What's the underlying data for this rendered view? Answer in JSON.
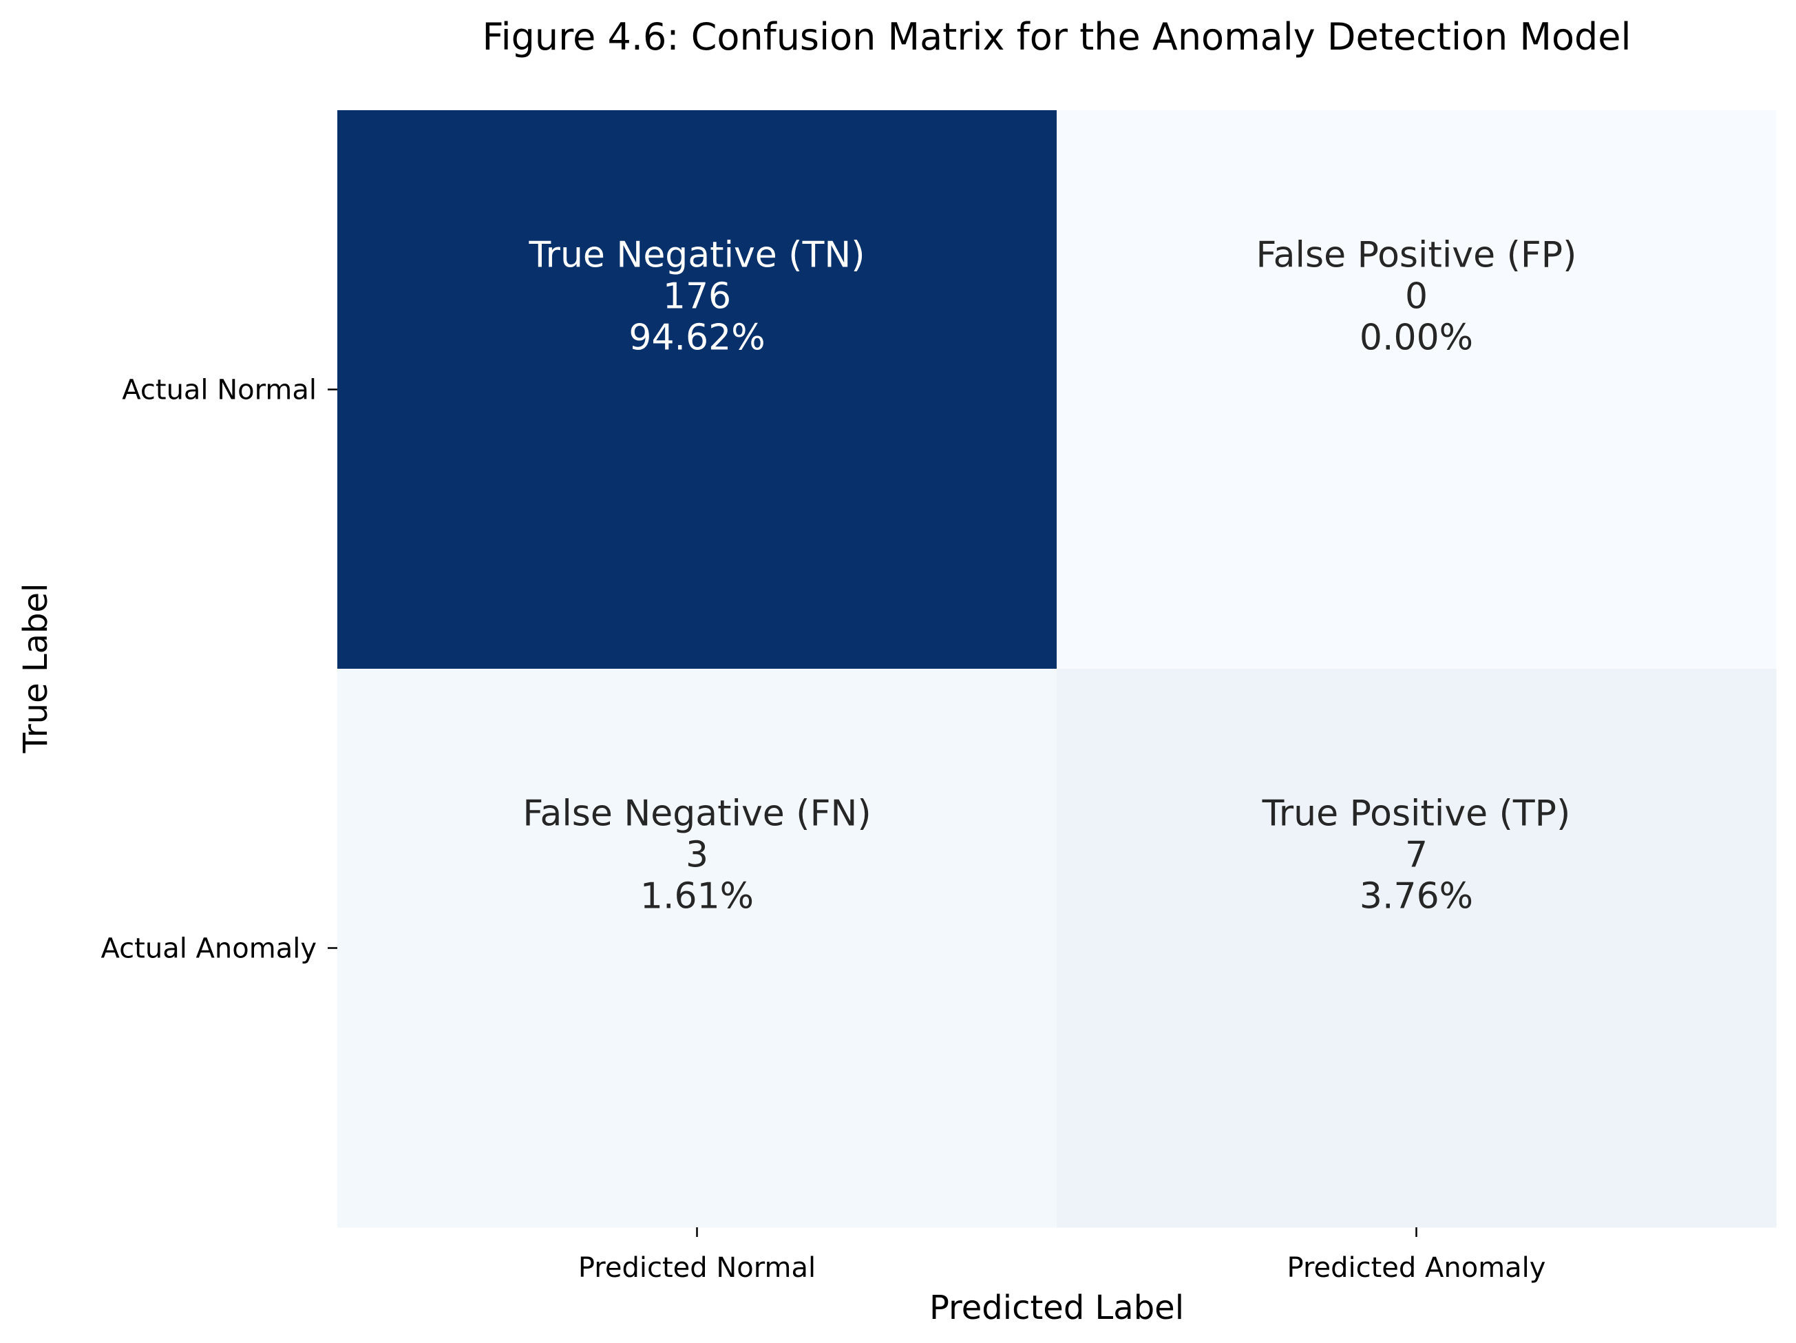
{
  "chart_data": {
    "type": "heatmap",
    "title": "Figure 4.6: Confusion Matrix for the Anomaly Detection Model",
    "xlabel": "Predicted Label",
    "ylabel": "True Label",
    "x_categories": [
      "Predicted Normal",
      "Predicted Anomaly"
    ],
    "y_categories": [
      "Actual Normal",
      "Actual Anomaly"
    ],
    "cells": [
      {
        "row": 0,
        "col": 0,
        "label": "True Negative (TN)",
        "value": 176,
        "percent": "94.62%"
      },
      {
        "row": 0,
        "col": 1,
        "label": "False Positive (FP)",
        "value": 0,
        "percent": "0.00%"
      },
      {
        "row": 1,
        "col": 0,
        "label": "False Negative (FN)",
        "value": 3,
        "percent": "1.61%"
      },
      {
        "row": 1,
        "col": 1,
        "label": "True Positive (TP)",
        "value": 7,
        "percent": "3.76%"
      }
    ],
    "colormap": "Blues",
    "value_range": [
      0,
      176
    ],
    "colorbar": false,
    "grid": false,
    "colors": {
      "low": "#f7fbff",
      "high": "#08306b",
      "text_dark": "#262626",
      "text_light": "#ffffff",
      "axis_text": "#000000"
    }
  }
}
